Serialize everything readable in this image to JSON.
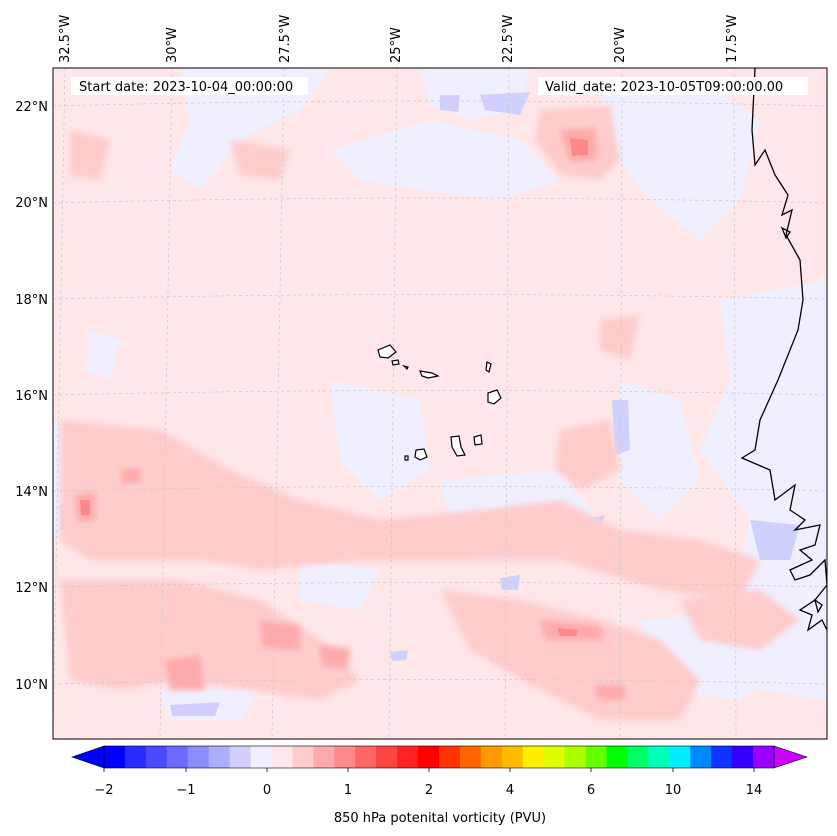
{
  "header": {
    "start_date": "Start date: 2023-10-04_00:00:00",
    "valid_date": "Valid_date: 2023-10-05T09:00:00.00"
  },
  "map": {
    "lon_labels": [
      "32.5°W",
      "30°W",
      "27.5°W",
      "25°W",
      "22.5°W",
      "20°W",
      "17.5°W"
    ],
    "lat_labels": [
      "22°N",
      "20°N",
      "18°N",
      "16°N",
      "14°N",
      "12°N",
      "10°N"
    ],
    "coastline_color": "#000000",
    "background_color": "#ffe6e8",
    "grid": true
  },
  "colorbar": {
    "label": "850 hPa potenital vorticity (PVU)",
    "tick_labels": [
      "−2",
      "−1",
      "0",
      "1",
      "2",
      "4",
      "6",
      "10",
      "14"
    ],
    "colors": [
      "#0000ff",
      "#2b2bff",
      "#4a4aff",
      "#6b6bff",
      "#8c8cff",
      "#adadff",
      "#d0d0ff",
      "#efefff",
      "#ffe6e8",
      "#ffcccc",
      "#ffaaaa",
      "#ff8888",
      "#ff6666",
      "#ff4444",
      "#ff2222",
      "#ff0000",
      "#ff3300",
      "#ff6600",
      "#ff9900",
      "#ffbb00",
      "#ffee00",
      "#ddff00",
      "#aaff00",
      "#66ff00",
      "#00ff00",
      "#00ff66",
      "#00ffbb",
      "#00eeff",
      "#0088ff",
      "#1133ff",
      "#3300ff",
      "#9900ff"
    ],
    "under_color": "#0000ff",
    "over_color": "#cc00ff"
  }
}
